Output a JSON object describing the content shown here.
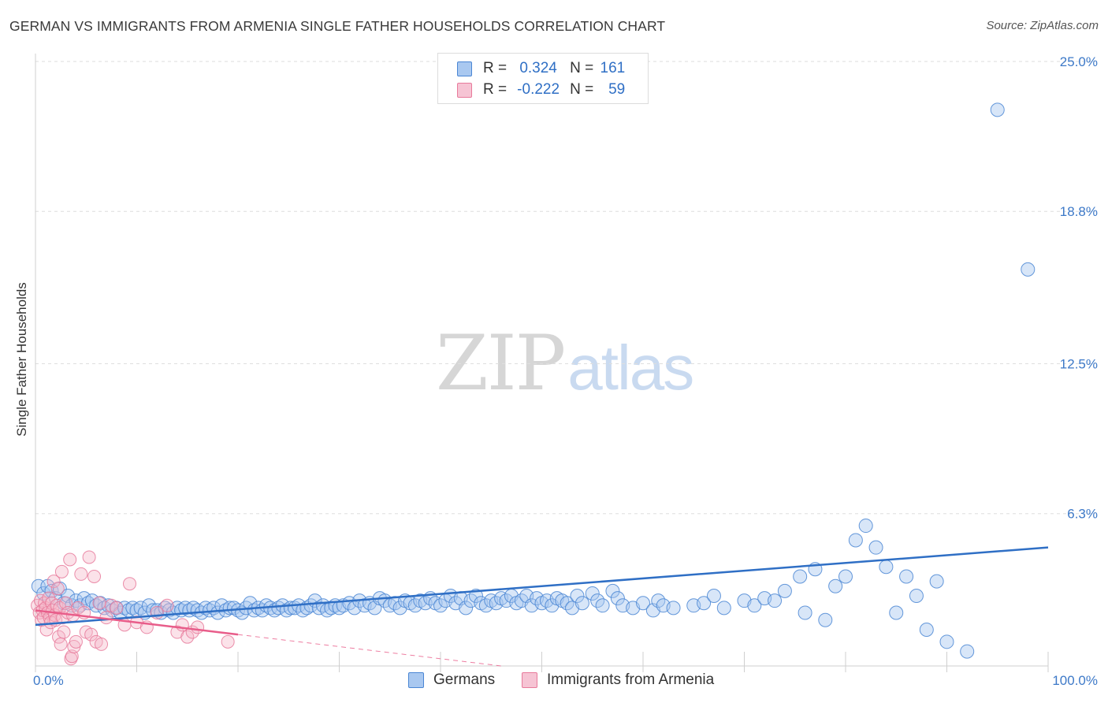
{
  "chart_data": {
    "type": "scatter",
    "title": "GERMAN VS IMMIGRANTS FROM ARMENIA SINGLE FATHER HOUSEHOLDS CORRELATION CHART",
    "source": "Source: ZipAtlas.com",
    "ylabel": "Single Father Households",
    "xlim": [
      0,
      100
    ],
    "ylim": [
      0,
      25
    ],
    "x_tick_labels": [
      "0.0%",
      "100.0%"
    ],
    "y_tick_labels": [
      "25.0%",
      "18.8%",
      "12.5%",
      "6.3%"
    ],
    "y_tick_values": [
      25.0,
      18.8,
      12.5,
      6.3
    ],
    "legend": [
      {
        "r_label": "R =",
        "r_value": "0.324",
        "n_label": "N =",
        "n_value": "161"
      },
      {
        "r_label": "R =",
        "r_value": "-0.222",
        "n_label": "N =",
        "n_value": "59"
      }
    ],
    "watermark": {
      "zip": "ZIP",
      "atlas": "atlas"
    },
    "colors": {
      "german": "#a9c8f0",
      "german_edge": "#4a86d4",
      "german_line": "#2f6fc5",
      "armenia": "#f6b6c8",
      "armenia_edge": "#e87a9b",
      "armenia_line": "#e85d8a",
      "tick": "#3d79c8"
    },
    "series": [
      {
        "name": "Germans",
        "trend": {
          "x": [
            0,
            100
          ],
          "y": [
            1.7,
            4.9
          ]
        },
        "points": [
          [
            0.3,
            3.3
          ],
          [
            0.8,
            3.0
          ],
          [
            1.2,
            3.3
          ],
          [
            1.6,
            3.1
          ],
          [
            2.0,
            2.8
          ],
          [
            2.4,
            3.2
          ],
          [
            2.8,
            2.6
          ],
          [
            3.2,
            2.9
          ],
          [
            3.6,
            2.5
          ],
          [
            4.0,
            2.7
          ],
          [
            4.4,
            2.5
          ],
          [
            4.8,
            2.8
          ],
          [
            5.2,
            2.6
          ],
          [
            5.6,
            2.7
          ],
          [
            6.0,
            2.5
          ],
          [
            6.4,
            2.6
          ],
          [
            6.8,
            2.4
          ],
          [
            7.2,
            2.5
          ],
          [
            7.6,
            2.3
          ],
          [
            8.0,
            2.4
          ],
          [
            8.4,
            2.2
          ],
          [
            8.8,
            2.4
          ],
          [
            9.2,
            2.3
          ],
          [
            9.6,
            2.4
          ],
          [
            10.0,
            2.3
          ],
          [
            10.4,
            2.4
          ],
          [
            10.8,
            2.2
          ],
          [
            11.2,
            2.5
          ],
          [
            11.6,
            2.3
          ],
          [
            12.0,
            2.3
          ],
          [
            12.4,
            2.2
          ],
          [
            12.8,
            2.4
          ],
          [
            13.2,
            2.3
          ],
          [
            13.6,
            2.2
          ],
          [
            14.0,
            2.4
          ],
          [
            14.4,
            2.3
          ],
          [
            14.8,
            2.4
          ],
          [
            15.2,
            2.3
          ],
          [
            15.6,
            2.4
          ],
          [
            16.0,
            2.3
          ],
          [
            16.4,
            2.2
          ],
          [
            16.8,
            2.4
          ],
          [
            17.2,
            2.3
          ],
          [
            17.6,
            2.4
          ],
          [
            18.0,
            2.2
          ],
          [
            18.4,
            2.5
          ],
          [
            18.8,
            2.3
          ],
          [
            19.2,
            2.4
          ],
          [
            19.6,
            2.4
          ],
          [
            20.0,
            2.3
          ],
          [
            20.4,
            2.2
          ],
          [
            20.8,
            2.4
          ],
          [
            21.2,
            2.6
          ],
          [
            21.6,
            2.3
          ],
          [
            22.0,
            2.4
          ],
          [
            22.4,
            2.3
          ],
          [
            22.8,
            2.5
          ],
          [
            23.2,
            2.4
          ],
          [
            23.6,
            2.3
          ],
          [
            24.0,
            2.4
          ],
          [
            24.4,
            2.5
          ],
          [
            24.8,
            2.3
          ],
          [
            25.2,
            2.4
          ],
          [
            25.6,
            2.4
          ],
          [
            26.0,
            2.5
          ],
          [
            26.4,
            2.3
          ],
          [
            26.8,
            2.4
          ],
          [
            27.2,
            2.5
          ],
          [
            27.6,
            2.7
          ],
          [
            28.0,
            2.4
          ],
          [
            28.4,
            2.5
          ],
          [
            28.8,
            2.3
          ],
          [
            29.2,
            2.4
          ],
          [
            29.6,
            2.5
          ],
          [
            30.0,
            2.4
          ],
          [
            30.4,
            2.5
          ],
          [
            31.0,
            2.6
          ],
          [
            31.5,
            2.4
          ],
          [
            32.0,
            2.7
          ],
          [
            32.5,
            2.5
          ],
          [
            33.0,
            2.6
          ],
          [
            33.5,
            2.4
          ],
          [
            34.0,
            2.8
          ],
          [
            34.5,
            2.7
          ],
          [
            35.0,
            2.5
          ],
          [
            35.5,
            2.6
          ],
          [
            36.0,
            2.4
          ],
          [
            36.5,
            2.7
          ],
          [
            37.0,
            2.6
          ],
          [
            37.5,
            2.5
          ],
          [
            38.0,
            2.7
          ],
          [
            38.5,
            2.6
          ],
          [
            39.0,
            2.8
          ],
          [
            39.5,
            2.6
          ],
          [
            40.0,
            2.5
          ],
          [
            40.5,
            2.7
          ],
          [
            41.0,
            2.9
          ],
          [
            41.5,
            2.6
          ],
          [
            42.0,
            2.8
          ],
          [
            42.5,
            2.4
          ],
          [
            43.0,
            2.7
          ],
          [
            43.5,
            2.9
          ],
          [
            44.0,
            2.6
          ],
          [
            44.5,
            2.5
          ],
          [
            45.0,
            2.7
          ],
          [
            45.5,
            2.6
          ],
          [
            46.0,
            2.8
          ],
          [
            46.5,
            2.7
          ],
          [
            47.0,
            2.9
          ],
          [
            47.5,
            2.6
          ],
          [
            48.0,
            2.7
          ],
          [
            48.5,
            2.9
          ],
          [
            49.0,
            2.5
          ],
          [
            49.5,
            2.8
          ],
          [
            50.0,
            2.6
          ],
          [
            50.5,
            2.7
          ],
          [
            51.0,
            2.5
          ],
          [
            51.5,
            2.8
          ],
          [
            52.0,
            2.7
          ],
          [
            52.5,
            2.6
          ],
          [
            53.0,
            2.4
          ],
          [
            53.5,
            2.9
          ],
          [
            54.0,
            2.6
          ],
          [
            55.0,
            3.0
          ],
          [
            55.5,
            2.7
          ],
          [
            56.0,
            2.5
          ],
          [
            57.0,
            3.1
          ],
          [
            57.5,
            2.8
          ],
          [
            58.0,
            2.5
          ],
          [
            59.0,
            2.4
          ],
          [
            60.0,
            2.6
          ],
          [
            61.0,
            2.3
          ],
          [
            61.5,
            2.7
          ],
          [
            62.0,
            2.5
          ],
          [
            63.0,
            2.4
          ],
          [
            65.0,
            2.5
          ],
          [
            66.0,
            2.6
          ],
          [
            67.0,
            2.9
          ],
          [
            68.0,
            2.4
          ],
          [
            70.0,
            2.7
          ],
          [
            71.0,
            2.5
          ],
          [
            72.0,
            2.8
          ],
          [
            73.0,
            2.7
          ],
          [
            74.0,
            3.1
          ],
          [
            75.5,
            3.7
          ],
          [
            76.0,
            2.2
          ],
          [
            77.0,
            4.0
          ],
          [
            78.0,
            1.9
          ],
          [
            79.0,
            3.3
          ],
          [
            80.0,
            3.7
          ],
          [
            81.0,
            5.2
          ],
          [
            82.0,
            5.8
          ],
          [
            83.0,
            4.9
          ],
          [
            84.0,
            4.1
          ],
          [
            85.0,
            2.2
          ],
          [
            86.0,
            3.7
          ],
          [
            87.0,
            2.9
          ],
          [
            88.0,
            1.5
          ],
          [
            89.0,
            3.5
          ],
          [
            90.0,
            1.0
          ],
          [
            92.0,
            0.6
          ],
          [
            95.0,
            23.0
          ],
          [
            98.0,
            16.4
          ]
        ]
      },
      {
        "name": "Immigrants from Armenia",
        "trend": {
          "x": [
            0,
            20
          ],
          "y": [
            2.3,
            1.3
          ]
        },
        "trend_dashed": {
          "x": [
            20,
            46
          ],
          "y": [
            1.3,
            0.0
          ]
        },
        "points": [
          [
            0.2,
            2.5
          ],
          [
            0.4,
            2.2
          ],
          [
            0.5,
            2.7
          ],
          [
            0.6,
            1.9
          ],
          [
            0.7,
            2.3
          ],
          [
            0.8,
            2.0
          ],
          [
            0.9,
            2.6
          ],
          [
            1.0,
            2.4
          ],
          [
            1.1,
            1.5
          ],
          [
            1.2,
            2.2
          ],
          [
            1.3,
            2.8
          ],
          [
            1.4,
            2.0
          ],
          [
            1.5,
            1.8
          ],
          [
            1.6,
            2.6
          ],
          [
            1.7,
            2.3
          ],
          [
            1.8,
            3.5
          ],
          [
            1.9,
            2.1
          ],
          [
            2.0,
            1.9
          ],
          [
            2.1,
            2.5
          ],
          [
            2.2,
            3.2
          ],
          [
            2.3,
            1.2
          ],
          [
            2.4,
            2.4
          ],
          [
            2.5,
            0.9
          ],
          [
            2.6,
            3.9
          ],
          [
            2.7,
            2.0
          ],
          [
            2.8,
            1.4
          ],
          [
            3.0,
            2.6
          ],
          [
            3.2,
            2.2
          ],
          [
            3.4,
            4.4
          ],
          [
            3.5,
            0.3
          ],
          [
            3.6,
            0.4
          ],
          [
            3.7,
            2.1
          ],
          [
            3.8,
            0.8
          ],
          [
            4.0,
            1.0
          ],
          [
            4.2,
            2.4
          ],
          [
            4.5,
            3.8
          ],
          [
            4.8,
            2.2
          ],
          [
            5.0,
            1.4
          ],
          [
            5.3,
            4.5
          ],
          [
            5.5,
            1.3
          ],
          [
            5.8,
            3.7
          ],
          [
            6.0,
            1.0
          ],
          [
            6.3,
            2.6
          ],
          [
            6.5,
            0.9
          ],
          [
            7.0,
            2.0
          ],
          [
            7.5,
            2.5
          ],
          [
            8.0,
            2.4
          ],
          [
            8.8,
            1.7
          ],
          [
            9.3,
            3.4
          ],
          [
            10.0,
            1.8
          ],
          [
            11.0,
            1.6
          ],
          [
            12.0,
            2.2
          ],
          [
            13.0,
            2.5
          ],
          [
            14.0,
            1.4
          ],
          [
            14.5,
            1.7
          ],
          [
            15.0,
            1.2
          ],
          [
            15.5,
            1.4
          ],
          [
            16.0,
            1.6
          ],
          [
            19.0,
            1.0
          ]
        ]
      }
    ]
  },
  "bottom_legend": [
    "Germans",
    "Immigrants from Armenia"
  ]
}
